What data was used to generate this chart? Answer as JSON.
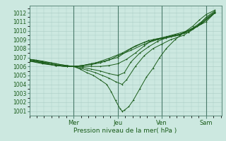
{
  "title": "Pression niveau de la mer( hPa )",
  "ylim": [
    1000.5,
    1012.8
  ],
  "yticks": [
    1001,
    1002,
    1003,
    1004,
    1005,
    1006,
    1007,
    1008,
    1009,
    1010,
    1011,
    1012
  ],
  "day_ticks": [
    1.0,
    2.0,
    3.0,
    4.0
  ],
  "day_labels": [
    "Mer",
    "Jeu",
    "Ven",
    "Sam"
  ],
  "day_vlines": [
    1.0,
    2.0,
    3.0,
    4.0
  ],
  "xlim": [
    0.0,
    4.35
  ],
  "bg_color": "#cce8e0",
  "grid_color": "#aaccC4",
  "line_color": "#1a5c1a",
  "line_width": 0.7,
  "series": [
    [
      0.0,
      1006.8,
      0.15,
      1006.7,
      0.3,
      1006.5,
      0.5,
      1006.4,
      0.7,
      1006.2,
      0.85,
      1006.1,
      1.0,
      1006.0,
      1.15,
      1005.7,
      1.3,
      1005.3,
      1.45,
      1005.0,
      1.6,
      1004.5,
      1.75,
      1004.0,
      1.85,
      1003.2,
      1.95,
      1002.2,
      2.05,
      1001.3,
      2.1,
      1001.0,
      2.15,
      1001.1,
      2.25,
      1001.5,
      2.35,
      1002.2,
      2.5,
      1003.5,
      2.65,
      1004.8,
      2.8,
      1005.8,
      2.95,
      1007.0,
      3.1,
      1008.0,
      3.3,
      1009.0,
      3.5,
      1009.8,
      3.7,
      1010.5,
      3.85,
      1011.2,
      4.0,
      1011.8,
      4.2,
      1012.3
    ],
    [
      0.0,
      1006.8,
      0.3,
      1006.6,
      0.6,
      1006.3,
      0.85,
      1006.1,
      1.0,
      1006.0,
      1.15,
      1005.8,
      1.3,
      1005.6,
      1.5,
      1005.3,
      1.65,
      1005.0,
      1.8,
      1004.7,
      1.95,
      1004.3,
      2.1,
      1004.0,
      2.2,
      1004.5,
      2.4,
      1006.0,
      2.6,
      1007.2,
      2.8,
      1008.0,
      3.0,
      1008.5,
      3.2,
      1009.0,
      3.5,
      1009.5,
      3.8,
      1010.5,
      4.0,
      1011.5,
      4.2,
      1012.2
    ],
    [
      0.0,
      1006.8,
      0.3,
      1006.5,
      0.6,
      1006.2,
      0.85,
      1006.0,
      1.0,
      1006.0,
      1.2,
      1005.9,
      1.4,
      1005.7,
      1.6,
      1005.5,
      1.8,
      1005.2,
      2.0,
      1005.0,
      2.15,
      1005.3,
      2.3,
      1006.5,
      2.5,
      1007.5,
      2.7,
      1008.2,
      2.9,
      1008.8,
      3.1,
      1009.2,
      3.4,
      1009.5,
      3.7,
      1010.3,
      3.9,
      1011.0,
      4.2,
      1012.1
    ],
    [
      0.0,
      1006.7,
      0.3,
      1006.4,
      0.6,
      1006.1,
      0.85,
      1006.0,
      1.0,
      1006.0,
      1.2,
      1006.0,
      1.4,
      1006.0,
      1.6,
      1006.0,
      1.8,
      1006.1,
      2.0,
      1006.3,
      2.2,
      1006.8,
      2.4,
      1007.5,
      2.6,
      1008.3,
      2.8,
      1009.0,
      3.0,
      1009.2,
      3.3,
      1009.5,
      3.6,
      1009.8,
      3.9,
      1010.8,
      4.2,
      1012.0
    ],
    [
      0.0,
      1006.7,
      0.3,
      1006.4,
      0.6,
      1006.1,
      0.85,
      1006.0,
      1.0,
      1006.0,
      1.2,
      1006.1,
      1.4,
      1006.2,
      1.6,
      1006.4,
      1.8,
      1006.7,
      2.0,
      1007.2,
      2.3,
      1007.8,
      2.6,
      1008.5,
      2.9,
      1009.0,
      3.1,
      1009.3,
      3.4,
      1009.6,
      3.7,
      1010.2,
      4.0,
      1011.0,
      4.2,
      1012.0
    ],
    [
      0.0,
      1006.6,
      0.3,
      1006.4,
      0.6,
      1006.1,
      0.85,
      1006.0,
      1.0,
      1006.0,
      1.2,
      1006.1,
      1.4,
      1006.3,
      1.7,
      1006.6,
      2.0,
      1007.0,
      2.3,
      1008.0,
      2.6,
      1008.7,
      2.9,
      1009.0,
      3.2,
      1009.3,
      3.5,
      1009.7,
      3.8,
      1010.5,
      4.2,
      1012.0
    ],
    [
      0.0,
      1006.6,
      0.3,
      1006.3,
      0.6,
      1006.1,
      0.85,
      1006.0,
      1.0,
      1006.0,
      1.2,
      1006.1,
      1.5,
      1006.4,
      1.8,
      1006.9,
      2.1,
      1007.5,
      2.4,
      1008.3,
      2.7,
      1008.9,
      3.0,
      1009.2,
      3.3,
      1009.6,
      3.6,
      1010.0,
      3.9,
      1010.8,
      4.2,
      1012.0
    ]
  ],
  "marker": "+"
}
